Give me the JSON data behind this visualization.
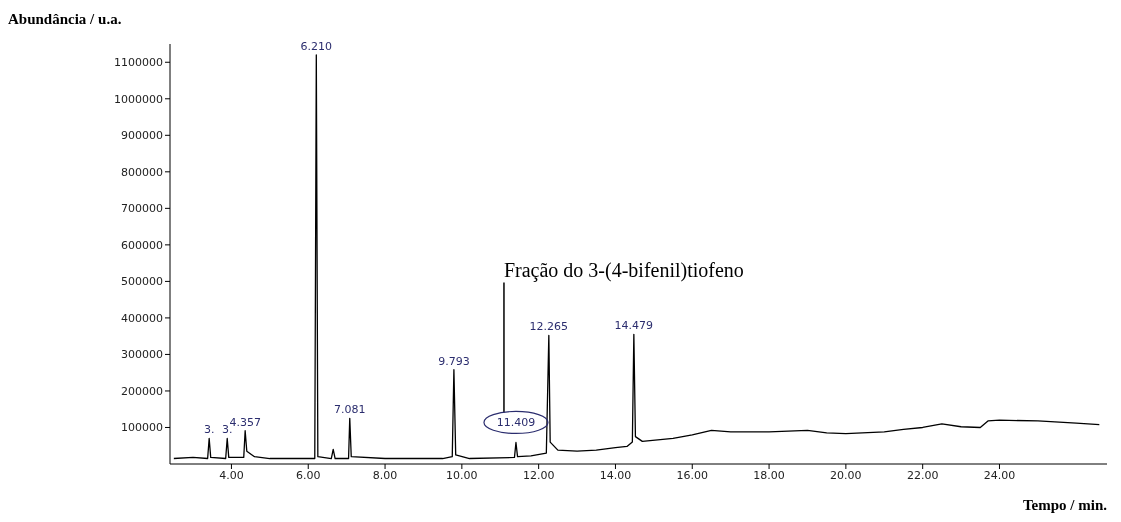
{
  "chart_data": {
    "type": "line",
    "xlabel": "Tempo / min.",
    "ylabel": "Abundância / u.a.",
    "xlim": [
      2.4,
      26.8
    ],
    "ylim": [
      0,
      1150000
    ],
    "xticks": [
      {
        "value": 4,
        "label": "4.00"
      },
      {
        "value": 6,
        "label": "6.00"
      },
      {
        "value": 8,
        "label": "8.00"
      },
      {
        "value": 10,
        "label": "10.00"
      },
      {
        "value": 12,
        "label": "12.00"
      },
      {
        "value": 14,
        "label": "14.00"
      },
      {
        "value": 16,
        "label": "16.00"
      },
      {
        "value": 18,
        "label": "18.00"
      },
      {
        "value": 20,
        "label": "20.00"
      },
      {
        "value": 22,
        "label": "22.00"
      },
      {
        "value": 24,
        "label": "24.00"
      }
    ],
    "yticks": [
      100000,
      200000,
      300000,
      400000,
      500000,
      600000,
      700000,
      800000,
      900000,
      1000000,
      1100000
    ],
    "x": [
      2.5,
      3.0,
      3.38,
      3.42,
      3.46,
      3.85,
      3.89,
      3.93,
      4.32,
      4.357,
      4.4,
      4.6,
      5.0,
      6.17,
      6.21,
      6.25,
      6.6,
      6.65,
      6.7,
      7.05,
      7.081,
      7.12,
      8.0,
      9.5,
      9.75,
      9.793,
      9.84,
      10.2,
      11.37,
      11.409,
      11.45,
      11.8,
      12.2,
      12.265,
      12.3,
      12.5,
      13.0,
      13.5,
      14.0,
      14.3,
      14.44,
      14.479,
      14.52,
      14.7,
      15.5,
      16.0,
      16.5,
      17.0,
      18.0,
      19.0,
      19.5,
      20.0,
      21.0,
      21.5,
      22.0,
      22.5,
      23.0,
      23.5,
      23.7,
      24.0,
      25.0,
      26.0,
      26.6
    ],
    "series": [
      {
        "color": "#000000",
        "values": [
          15000,
          18000,
          15000,
          70000,
          18000,
          15000,
          70000,
          18000,
          18000,
          91000,
          35000,
          20000,
          15000,
          15000,
          1120000,
          20000,
          15000,
          40000,
          15000,
          15000,
          125000,
          20000,
          15000,
          15000,
          20000,
          258000,
          25000,
          15000,
          18000,
          59000,
          20000,
          22000,
          30000,
          352000,
          60000,
          38000,
          35000,
          38000,
          45000,
          48000,
          60000,
          355000,
          75000,
          62000,
          70000,
          80000,
          92000,
          88000,
          88000,
          92000,
          85000,
          83000,
          88000,
          95000,
          100000,
          110000,
          102000,
          100000,
          118000,
          120000,
          118000,
          112000,
          108000
        ]
      }
    ],
    "marker": "none",
    "line_style": "solid",
    "annotations": [
      {
        "text": "3.",
        "x": 3.42,
        "y": 70000
      },
      {
        "text": "3.",
        "x": 3.89,
        "y": 70000
      },
      {
        "text": "4.357",
        "x": 4.357,
        "y": 91000
      },
      {
        "text": "6.210",
        "x": 6.21,
        "y": 1120000
      },
      {
        "text": "7.081",
        "x": 7.081,
        "y": 125000
      },
      {
        "text": "9.793",
        "x": 9.793,
        "y": 258000
      },
      {
        "text": "11.409",
        "x": 11.409,
        "y": 59000
      },
      {
        "text": "12.265",
        "x": 12.265,
        "y": 352000
      },
      {
        "text": "14.479",
        "x": 14.479,
        "y": 355000
      },
      "Fração do 3-(4-bifenil)tiofeno"
    ]
  }
}
